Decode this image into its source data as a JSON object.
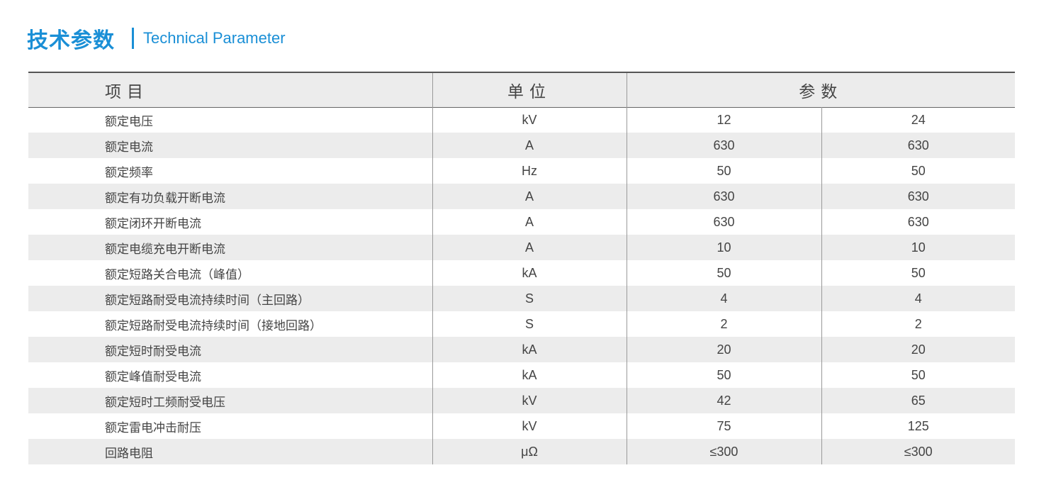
{
  "heading": {
    "zh": "技术参数",
    "en": "Technical Parameter",
    "accent_color": "#1a8fd6"
  },
  "table": {
    "headers": {
      "item": "项目",
      "unit": "单位",
      "params": "参数"
    },
    "rows": [
      {
        "item": "额定电压",
        "unit": "kV",
        "v1": "12",
        "v2": "24"
      },
      {
        "item": "额定电流",
        "unit": "A",
        "v1": "630",
        "v2": "630"
      },
      {
        "item": "额定频率",
        "unit": "Hz",
        "v1": "50",
        "v2": "50"
      },
      {
        "item": "额定有功负载开断电流",
        "unit": "A",
        "v1": "630",
        "v2": "630"
      },
      {
        "item": "额定闭环开断电流",
        "unit": "A",
        "v1": "630",
        "v2": "630"
      },
      {
        "item": "额定电缆充电开断电流",
        "unit": "A",
        "v1": "10",
        "v2": "10"
      },
      {
        "item": "额定短路关合电流（峰值）",
        "unit": "kA",
        "v1": "50",
        "v2": "50"
      },
      {
        "item": "额定短路耐受电流持续时间（主回路）",
        "unit": "S",
        "v1": "4",
        "v2": "4"
      },
      {
        "item": "额定短路耐受电流持续时间（接地回路）",
        "unit": "S",
        "v1": "2",
        "v2": "2"
      },
      {
        "item": "额定短时耐受电流",
        "unit": "kA",
        "v1": "20",
        "v2": "20"
      },
      {
        "item": "额定峰值耐受电流",
        "unit": "kA",
        "v1": "50",
        "v2": "50"
      },
      {
        "item": "额定短时工频耐受电压",
        "unit": "kV",
        "v1": "42",
        "v2": "65"
      },
      {
        "item": "额定雷电冲击耐压",
        "unit": "kV",
        "v1": "75",
        "v2": "125"
      },
      {
        "item": "回路电阻",
        "unit": "μΩ",
        "v1": "≤300",
        "v2": "≤300"
      }
    ]
  }
}
